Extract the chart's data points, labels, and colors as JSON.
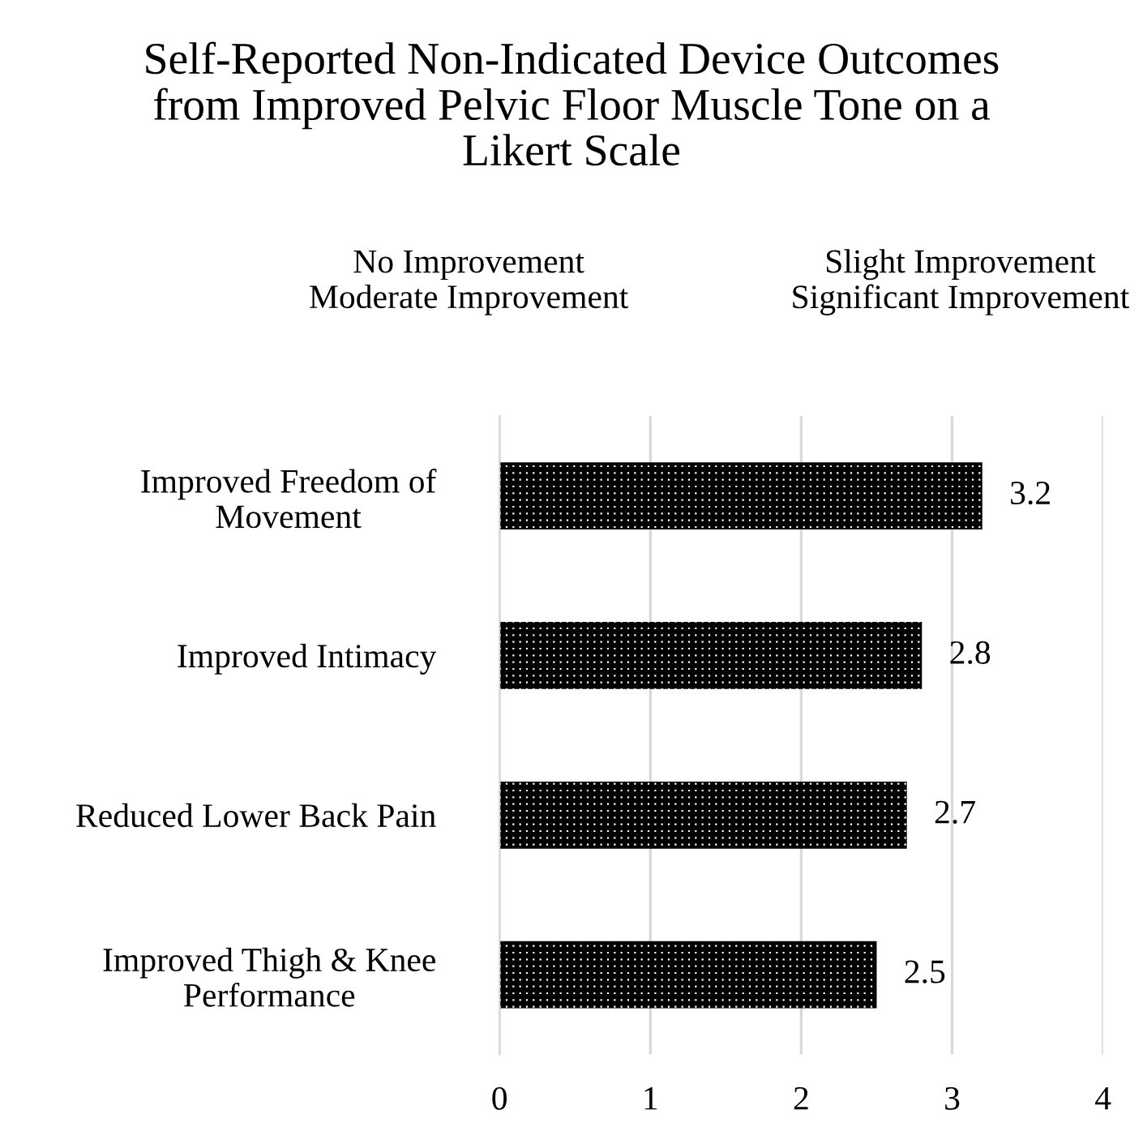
{
  "chart_data": {
    "type": "bar",
    "orientation": "horizontal",
    "title": "Self-Reported Non-Indicated Device Outcomes\nfrom Improved Pelvic Floor Muscle Tone on a\nLikert Scale",
    "annotations": [
      "No Improvement",
      "Slight Improvement",
      "Moderate Improvement",
      "Significant Improvement"
    ],
    "categories": [
      "Improved Freedom of\nMovement",
      "Improved Intimacy",
      "Reduced Lower Back Pain",
      "Improved Thigh & Knee\nPerformance"
    ],
    "values": [
      3.2,
      2.8,
      2.7,
      2.5
    ],
    "color": "#000000",
    "data_labels": true,
    "xlim": [
      0,
      4
    ],
    "xticks": [
      0,
      1,
      2,
      3,
      4
    ],
    "grid": "x"
  }
}
